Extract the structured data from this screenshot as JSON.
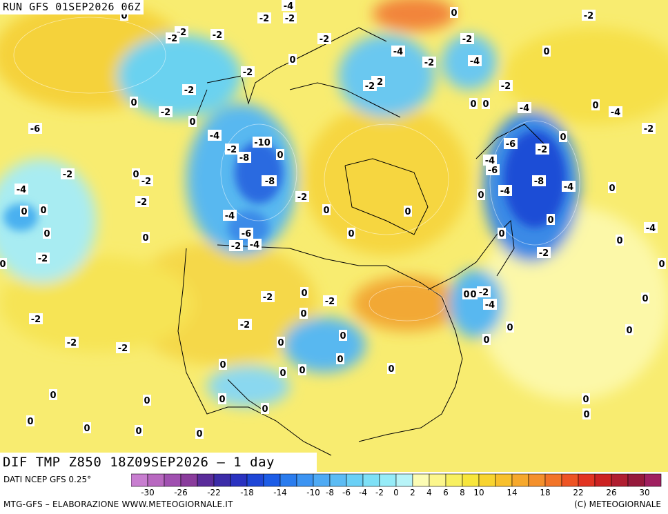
{
  "header": {
    "run_label": "RUN GFS 01SEP2026 06Z",
    "map_title": "DIF TMP Z850 18Z09SEP2026 – 1 day"
  },
  "footer": {
    "source": "DATI NCEP GFS 0.25°",
    "credit_left": "MTG-GFS – ELABORAZIONE WWW.METEOGIORNALE.IT",
    "credit_right": "(C) METEOGIORNALE"
  },
  "colors": {
    "ocean": "#f8f08a",
    "bright_yellow": "#f5e83a",
    "orange": "#f5b430",
    "dark_orange": "#f0782c",
    "cyan": "#7fe8f5",
    "light_blue": "#58c8f0",
    "blue": "#2a8ae8",
    "dark_blue": "#1e50d8"
  },
  "legend": {
    "bins": [
      {
        "color": "#c87ed0"
      },
      {
        "color": "#b868c0"
      },
      {
        "color": "#a050b0"
      },
      {
        "color": "#8a3c9c"
      },
      {
        "color": "#5a2c9a"
      },
      {
        "color": "#3c2ca8"
      },
      {
        "color": "#2a32c0"
      },
      {
        "color": "#1e46d6"
      },
      {
        "color": "#1c5ce6"
      },
      {
        "color": "#2a7cee"
      },
      {
        "color": "#3c94f2"
      },
      {
        "color": "#4eaaf4"
      },
      {
        "color": "#5cbcf4"
      },
      {
        "color": "#6ad0f6"
      },
      {
        "color": "#7ee0f6"
      },
      {
        "color": "#96ecf8"
      },
      {
        "color": "#b8f4f8"
      },
      {
        "color": "#fcfcb4"
      },
      {
        "color": "#fcf68c"
      },
      {
        "color": "#f8f060"
      },
      {
        "color": "#f8e63c"
      },
      {
        "color": "#f8d430"
      },
      {
        "color": "#f8c02c"
      },
      {
        "color": "#f6a82c"
      },
      {
        "color": "#f4902c"
      },
      {
        "color": "#f27428"
      },
      {
        "color": "#ee5424"
      },
      {
        "color": "#e23422"
      },
      {
        "color": "#cc2222"
      },
      {
        "color": "#b01e30"
      },
      {
        "color": "#961a3c"
      },
      {
        "color": "#a02060"
      }
    ],
    "tick_labels": [
      "-30",
      "-26",
      "-22",
      "-18",
      "-14",
      "-10",
      "-8",
      "-6",
      "-4",
      "-2",
      "0",
      "2",
      "4",
      "6",
      "8",
      "10",
      "14",
      "18",
      "22",
      "26",
      "30"
    ]
  },
  "contour_labels": [
    "-4",
    "-2",
    "-2",
    "0",
    "-2",
    "-2",
    "-2",
    "-2",
    "0",
    "0",
    "-4",
    "-2",
    "-4",
    "-2",
    "0",
    "-2",
    "-2",
    "-2",
    "-2",
    "-2",
    "-2",
    "0",
    "0",
    "0",
    "-2",
    "0",
    "-4",
    "-4",
    "-2",
    "-4",
    "0",
    "-6",
    "-2",
    "-10",
    "-6",
    "-2",
    "0",
    "-4",
    "0",
    "-8",
    "-6",
    "-8",
    "-4",
    "-2",
    "0",
    "-8",
    "-2",
    "-4",
    "0",
    "0",
    "-4",
    "-8",
    "0",
    "-2",
    "0",
    "-2",
    "0",
    "0",
    "-4",
    "-6",
    "0",
    "-2",
    "-4",
    "0",
    "0",
    "-2",
    "0",
    "0",
    "-4",
    "0",
    "-2",
    "0",
    "0",
    "-2",
    "0",
    "0",
    "-2",
    "0",
    "-4",
    "-2",
    "0",
    "-2",
    "-2",
    "0",
    "0",
    "0",
    "0",
    "0",
    "-2",
    "-2",
    "0",
    "0",
    "0",
    "0",
    "0",
    "0",
    "0",
    "0",
    "0",
    "0",
    "0",
    "0",
    "0",
    "0",
    "0",
    "0"
  ]
}
